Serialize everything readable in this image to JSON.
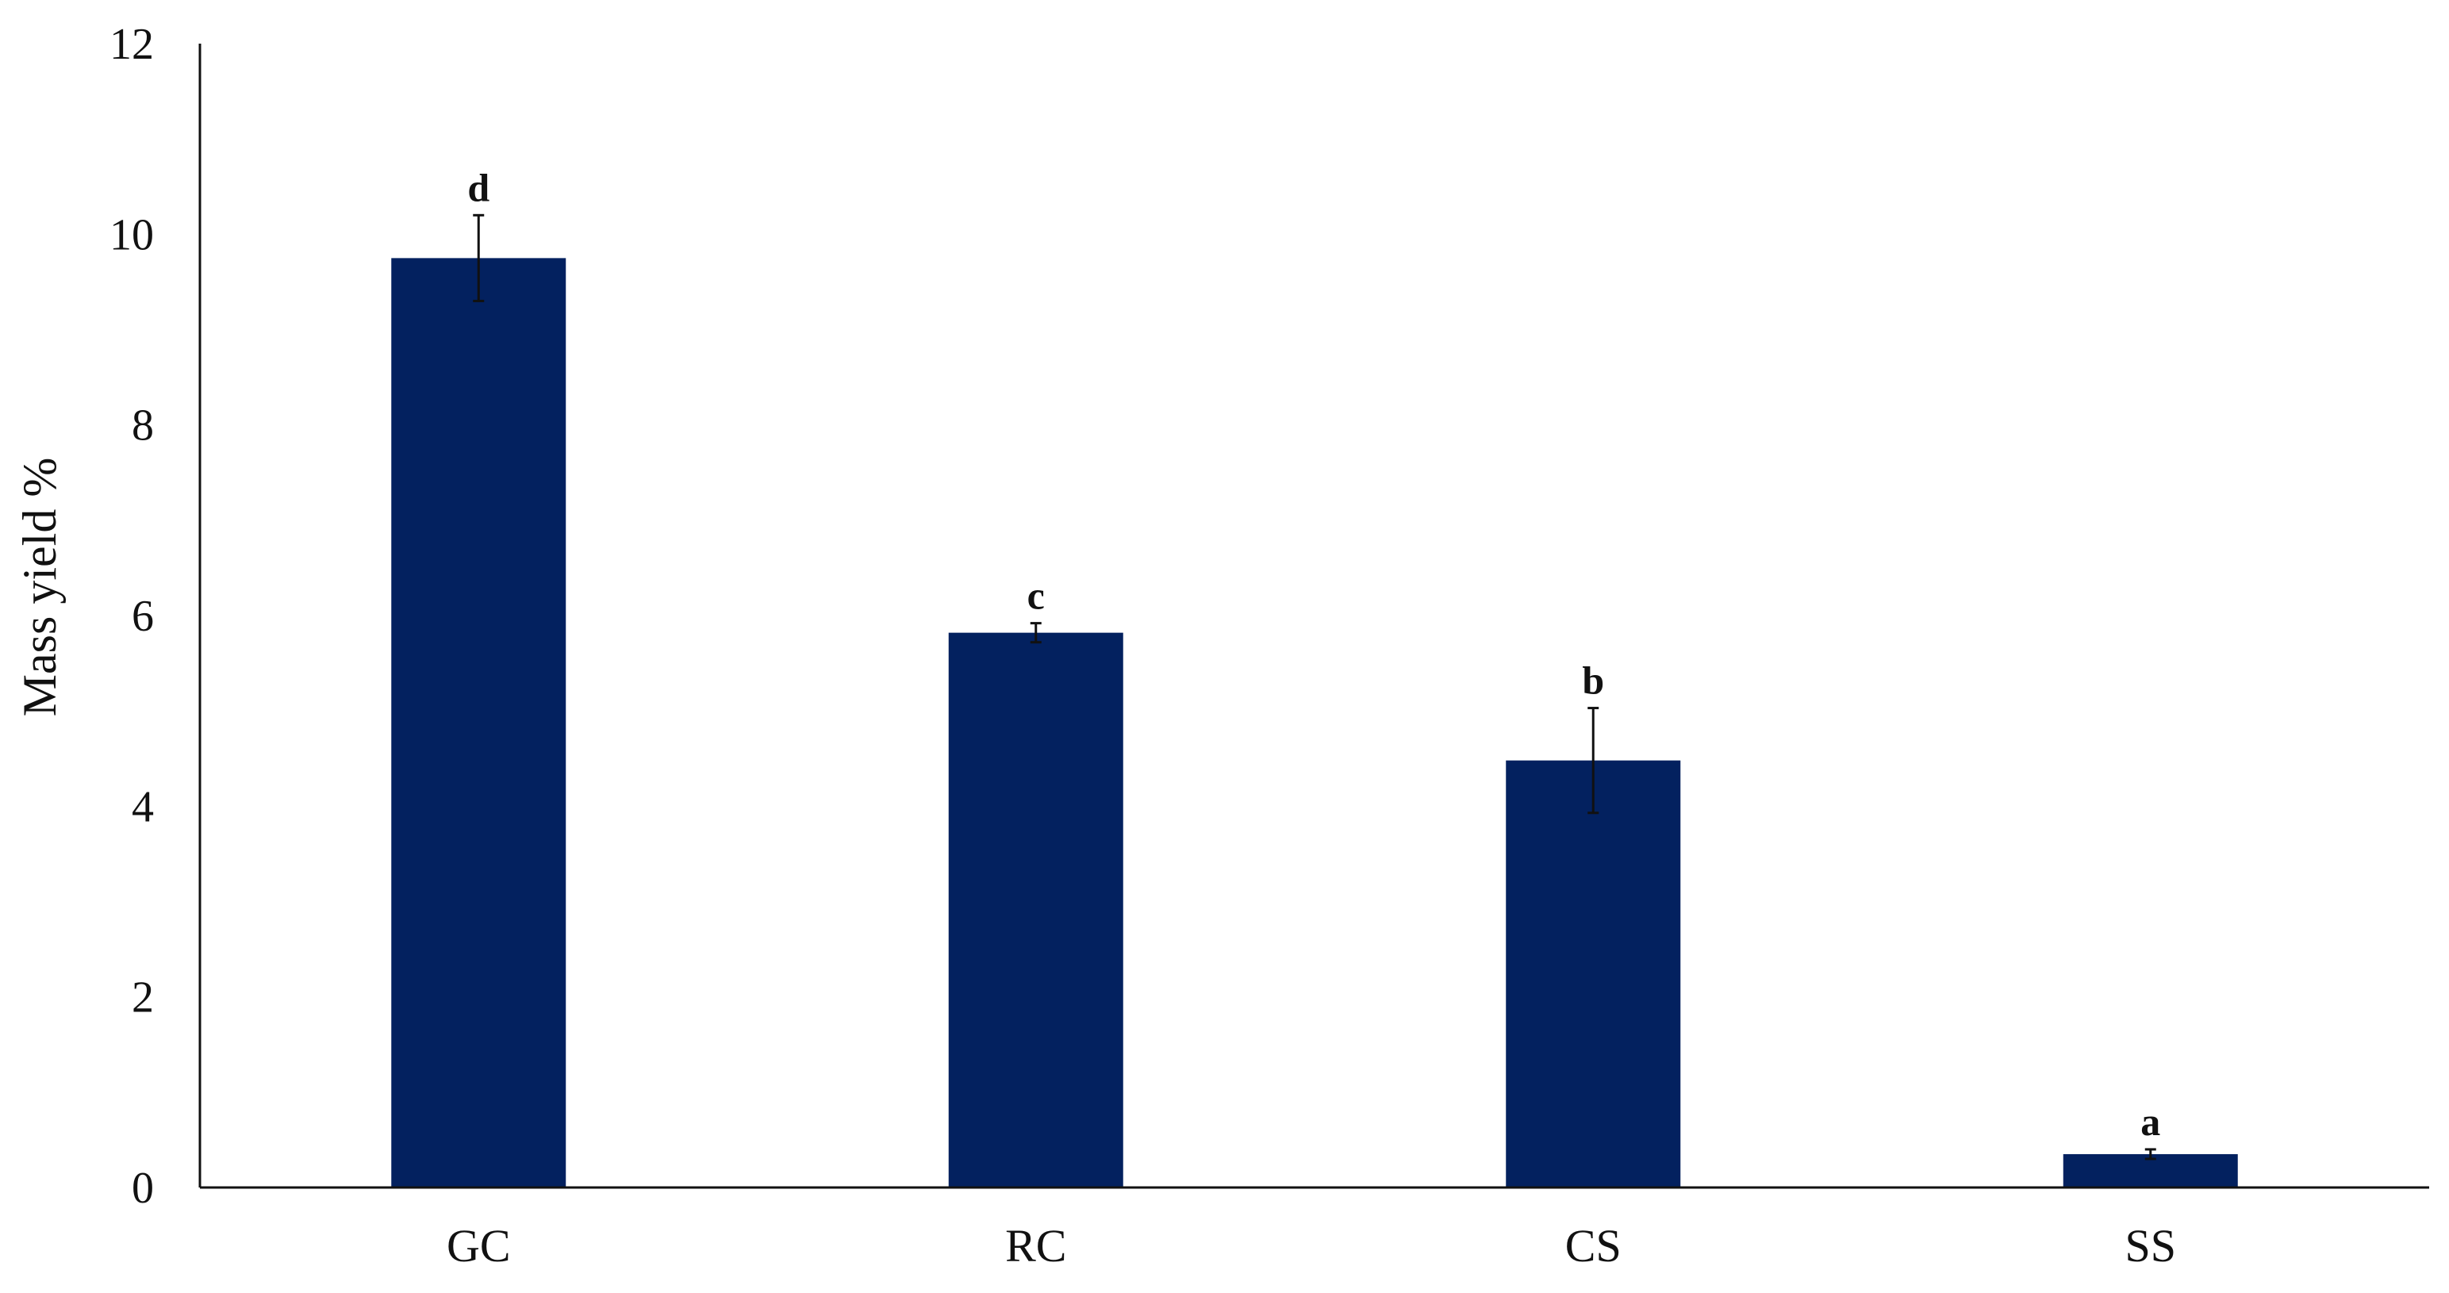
{
  "chart_data": {
    "type": "bar",
    "title": "",
    "xlabel": "",
    "ylabel": "Mass yield %",
    "ylim": [
      0,
      12
    ],
    "yticks": [
      "0",
      "2",
      "4",
      "6",
      "8",
      "10",
      "12"
    ],
    "grid": false,
    "legend": "none",
    "categories": [
      "GC",
      "RC",
      "CS",
      "SS"
    ],
    "values": [
      9.75,
      5.82,
      4.48,
      0.35
    ],
    "error": [
      0.45,
      0.1,
      0.55,
      0.05
    ],
    "significance_labels": [
      "d",
      "c",
      "b",
      "a"
    ],
    "bar_color": "#03215f"
  }
}
